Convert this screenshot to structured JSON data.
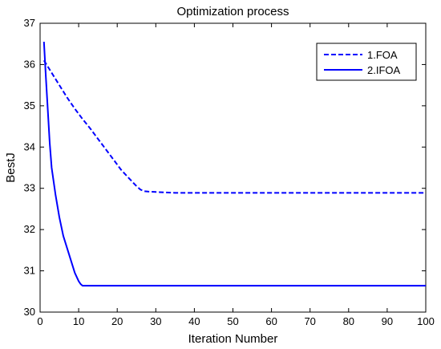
{
  "chart_data": {
    "type": "line",
    "title": "Optimization process",
    "xlabel": "Iteration Number",
    "ylabel": "BestJ",
    "xlim": [
      0,
      100
    ],
    "ylim": [
      30,
      37
    ],
    "xticks": [
      0,
      10,
      20,
      30,
      40,
      50,
      60,
      70,
      80,
      90,
      100
    ],
    "yticks": [
      30,
      31,
      32,
      33,
      34,
      35,
      36,
      37
    ],
    "grid": false,
    "legend_position": "top-right",
    "series": [
      {
        "name": "1.FOA",
        "style": "dashed",
        "color": "#0000ff",
        "x": [
          1,
          2,
          3,
          5,
          7,
          9,
          11,
          13,
          15,
          17,
          19,
          21,
          23,
          25,
          26,
          27,
          28,
          30,
          35,
          40,
          50,
          60,
          70,
          80,
          90,
          100
        ],
        "y": [
          36.1,
          35.95,
          35.8,
          35.5,
          35.2,
          34.93,
          34.68,
          34.45,
          34.2,
          33.95,
          33.7,
          33.45,
          33.25,
          33.05,
          32.97,
          32.93,
          32.92,
          32.91,
          32.89,
          32.89,
          32.89,
          32.89,
          32.89,
          32.89,
          32.89,
          32.89
        ]
      },
      {
        "name": "2.IFOA",
        "style": "solid",
        "color": "#0000ff",
        "x": [
          1,
          1.5,
          2,
          2.5,
          3,
          4,
          5,
          6,
          7,
          8,
          9,
          10,
          10.5,
          11,
          12,
          20,
          40,
          60,
          80,
          100
        ],
        "y": [
          36.55,
          35.7,
          34.9,
          34.1,
          33.5,
          32.85,
          32.3,
          31.85,
          31.55,
          31.25,
          30.95,
          30.75,
          30.68,
          30.64,
          30.64,
          30.64,
          30.64,
          30.64,
          30.64,
          30.64
        ]
      }
    ]
  }
}
